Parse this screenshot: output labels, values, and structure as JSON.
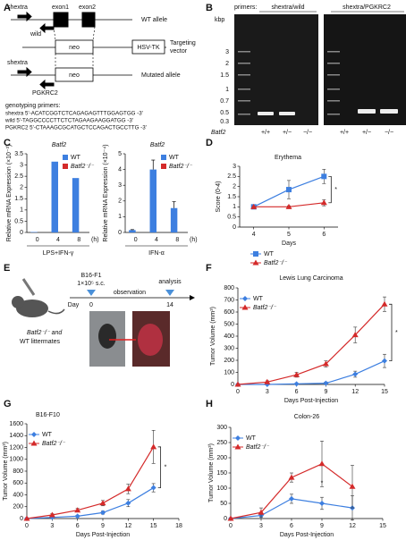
{
  "panel_a": {
    "label": "A",
    "primer_fwd": "shextra",
    "exon1": "exon1",
    "exon2": "exon2",
    "wt_allele": "WT allele",
    "primer_wild": "wild",
    "neo_targeting": "neo",
    "hsv_tk": "HSV-TK",
    "targeting_vector": [
      "Targeting",
      "vector"
    ],
    "primer_fwd_mutated": "shextra",
    "neo_mutated": "neo",
    "mutated_allele": "Mutated allele",
    "primer_pgkrc2": "PGKRC2",
    "genotyping_title": "genotyping primers:",
    "sequences": [
      "shextra 5'-ACATCGGTCTCAGAGAGTTTGGAGTGG -3'",
      "wild  5'-TAGGCCCCTTCTCTAGAAGAAGGATGG -3'",
      "PGKRC2 5'-CTAAAGCGCATGCTCCAGACTGCCTTG -3'"
    ]
  },
  "panel_b": {
    "label": "B",
    "primers_label": "primers:",
    "gel_1": "shextra/wild",
    "gel_2": "shextra/PGKRC2",
    "unit": "kbp",
    "ladder": [
      "3",
      "2",
      "1.5",
      "1",
      "0.7",
      "0.5",
      "0.3"
    ],
    "gene": "Batf2",
    "genotypes_1": [
      "+/+",
      "+/−",
      "−/−"
    ],
    "genotypes_2": [
      "+/+",
      "+/−",
      "−/−"
    ]
  },
  "panel_e": {
    "label": "E",
    "cell_line": "B16-F1",
    "dose": "1×10⁵ s.c.",
    "day_label": "Day",
    "start_day": "0",
    "phase": "observation",
    "end_label": "analysis",
    "end_day": "14",
    "mice": [
      "Batf2⁻/⁻ and",
      "WT littermates"
    ]
  },
  "chart_data": [
    {
      "type": "bar",
      "label": "C",
      "title": "Batf2",
      "ylabel": "Relative mRNA Expression (×10⁻³)",
      "xlabel": "(h)",
      "group_label": "LPS+IFN-γ",
      "categories": [
        "0",
        "4",
        "8"
      ],
      "series": [
        {
          "name": "WT",
          "color": "#3d7fe0",
          "values": [
            0.02,
            3.15,
            2.42
          ]
        },
        {
          "name": "Batf2⁻/⁻",
          "color": "#d42a2a",
          "values": [
            0,
            0,
            0
          ]
        }
      ],
      "ylim": [
        0,
        3.5
      ],
      "yticks": [
        0,
        0.5,
        1,
        1.5,
        2,
        2.5,
        3,
        3.5
      ],
      "legend": "upper right"
    },
    {
      "type": "bar",
      "title": "Batf2",
      "ylabel": "Relative mRNA Expression (×10⁻⁴)",
      "xlabel": "(h)",
      "group_label": "IFN-α",
      "categories": [
        "0",
        "4",
        "8"
      ],
      "series": [
        {
          "name": "WT",
          "color": "#3d7fe0",
          "values": [
            0.15,
            4.0,
            1.55
          ],
          "errors": [
            0.03,
            0.6,
            0.4
          ]
        },
        {
          "name": "Batf2⁻/⁻",
          "color": "#d42a2a",
          "values": [
            0,
            0,
            0
          ]
        }
      ],
      "ylim": [
        0,
        5
      ],
      "yticks": [
        0,
        1,
        2,
        3,
        4,
        5
      ],
      "legend": "upper right"
    },
    {
      "type": "line",
      "label": "D",
      "title": "Erythema",
      "ylabel": "Score (0-4)",
      "xlabel": "Days",
      "x": [
        4,
        5,
        6
      ],
      "xlim": [
        3.6,
        6.4
      ],
      "xticks": [
        4,
        5,
        6
      ],
      "series": [
        {
          "name": "WT",
          "color": "#3d7fe0",
          "marker": "square",
          "values": [
            1,
            1.85,
            2.5
          ],
          "errors": [
            0,
            0.45,
            0.35
          ]
        },
        {
          "name": "Batf2⁻/⁻",
          "color": "#d42a2a",
          "marker": "triangle",
          "values": [
            1,
            1,
            1.2
          ],
          "errors": [
            0,
            0.05,
            0.15
          ]
        }
      ],
      "ylim": [
        0,
        3
      ],
      "yticks": [
        0,
        0.5,
        1,
        1.5,
        2,
        2.5,
        3
      ],
      "legend": "below",
      "annotation": "*",
      "bracket": true
    },
    {
      "type": "line",
      "label": "F",
      "title": "Lewis Lung Carcinoma",
      "ylabel": "Tumor Volume (mm³)",
      "xlabel": "Days Post-Injection",
      "x": [
        0,
        3,
        6,
        9,
        12,
        15
      ],
      "xlim": [
        0,
        15
      ],
      "xticks": [
        0,
        3,
        6,
        9,
        12,
        15
      ],
      "series": [
        {
          "name": "WT",
          "color": "#3d7fe0",
          "marker": "diamond",
          "values": [
            0,
            0,
            5,
            10,
            85,
            195
          ],
          "errors": [
            0,
            5,
            5,
            10,
            25,
            55
          ]
        },
        {
          "name": "Batf2⁻/⁻",
          "color": "#d42a2a",
          "marker": "triangle",
          "values": [
            0,
            20,
            80,
            170,
            410,
            665
          ],
          "errors": [
            0,
            10,
            20,
            25,
            65,
            60
          ]
        }
      ],
      "ylim": [
        0,
        800
      ],
      "yticks": [
        0,
        100,
        200,
        300,
        400,
        500,
        600,
        700,
        800
      ],
      "legend": "upper left",
      "annotation": "*",
      "bracket": true
    },
    {
      "type": "line",
      "label": "G",
      "title": "B16-F10",
      "ylabel": "Tumor Volume (mm³)",
      "xlabel": "Days Post-Injection",
      "x": [
        0,
        3,
        6,
        9,
        12,
        15
      ],
      "xlim": [
        0,
        18
      ],
      "xticks": [
        0,
        3,
        6,
        9,
        12,
        15,
        18
      ],
      "series": [
        {
          "name": "WT",
          "color": "#3d7fe0",
          "marker": "diamond",
          "values": [
            0,
            20,
            40,
            100,
            260,
            520
          ],
          "errors": [
            0,
            10,
            15,
            25,
            60,
            70
          ]
        },
        {
          "name": "Batf2⁻/⁻",
          "color": "#d42a2a",
          "marker": "triangle",
          "values": [
            0,
            60,
            140,
            260,
            500,
            1210
          ],
          "errors": [
            0,
            20,
            30,
            45,
            80,
            280
          ]
        }
      ],
      "ylim": [
        0,
        1600
      ],
      "yticks": [
        0,
        200,
        400,
        600,
        800,
        1000,
        1200,
        1400,
        1600
      ],
      "legend": "upper left",
      "annotation": "*",
      "bracket": true
    },
    {
      "type": "line",
      "label": "H",
      "title": "Colon-26",
      "ylabel": "Tumor Volume (mm³)",
      "xlabel": "Days Post-Injection",
      "x": [
        0,
        3,
        6,
        9,
        12
      ],
      "xlim": [
        0,
        15
      ],
      "xticks": [
        0,
        3,
        6,
        9,
        12,
        15
      ],
      "series": [
        {
          "name": "WT",
          "color": "#3d7fe0",
          "marker": "diamond",
          "values": [
            0,
            10,
            65,
            50,
            35
          ],
          "errors": [
            0,
            10,
            15,
            20,
            40
          ]
        },
        {
          "name": "Batf2⁻/⁻",
          "color": "#d42a2a",
          "marker": "triangle",
          "values": [
            0,
            20,
            135,
            180,
            105
          ],
          "errors": [
            0,
            15,
            15,
            75,
            70
          ]
        }
      ],
      "ylim": [
        0,
        300
      ],
      "yticks": [
        0,
        50,
        100,
        150,
        200,
        250,
        300
      ],
      "legend": "upper left",
      "annotation": "*",
      "bracket": false
    }
  ]
}
